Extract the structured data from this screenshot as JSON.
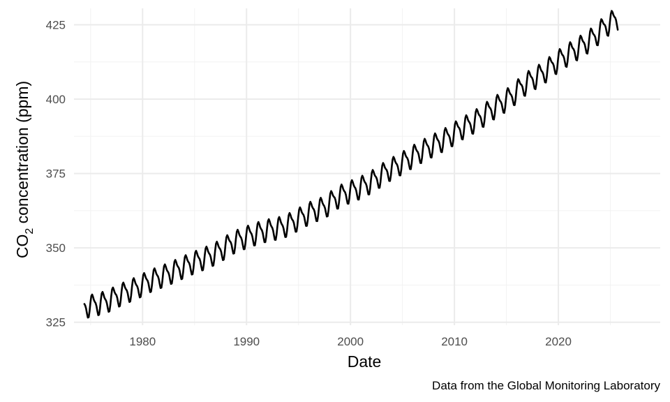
{
  "chart_data": {
    "type": "line",
    "title": "",
    "xlabel": "Date",
    "ylabel_main": "CO",
    "ylabel_sub": "2",
    "ylabel_rest": " concentration (ppm)",
    "caption": "Data from the Global Monitoring Laboratory",
    "xlim": [
      1973.4,
      2029.8
    ],
    "ylim": [
      324,
      430.5
    ],
    "x_ticks": [
      1980,
      1990,
      2000,
      2010,
      2020
    ],
    "x_tick_labels": [
      "1980",
      "1990",
      "2000",
      "2010",
      "2020"
    ],
    "x_minor_ticks": [
      1975,
      1985,
      1995,
      2005,
      2015,
      2025
    ],
    "y_ticks": [
      325,
      350,
      375,
      400,
      425
    ],
    "y_tick_labels": [
      "325",
      "350",
      "375",
      "400",
      "425"
    ],
    "y_minor_ticks": [
      337.5,
      362.5,
      387.5,
      412.5
    ],
    "grid": true,
    "legend": "none",
    "series": [
      {
        "name": "CO2 (ppm)",
        "color": "#000000",
        "x_start": 1974.4,
        "x_end": 2025.75,
        "step": 0.0833,
        "annual_means": {
          "1974": 330.3,
          "1975": 331.1,
          "1976": 332.0,
          "1977": 333.8,
          "1978": 335.4,
          "1979": 336.8,
          "1980": 338.7,
          "1981": 340.1,
          "1982": 341.4,
          "1983": 343.0,
          "1984": 344.6,
          "1985": 346.0,
          "1986": 347.4,
          "1987": 349.2,
          "1988": 351.6,
          "1989": 353.1,
          "1990": 354.4,
          "1991": 355.6,
          "1992": 356.4,
          "1993": 357.1,
          "1994": 358.8,
          "1995": 360.8,
          "1996": 362.6,
          "1997": 363.7,
          "1998": 366.6,
          "1999": 368.4,
          "2000": 369.7,
          "2001": 371.3,
          "2002": 373.4,
          "2003": 375.9,
          "2004": 377.7,
          "2005": 379.8,
          "2006": 381.9,
          "2007": 383.8,
          "2008": 385.6,
          "2009": 387.4,
          "2010": 389.9,
          "2011": 391.7,
          "2012": 393.9,
          "2013": 396.5,
          "2014": 398.7,
          "2015": 401.0,
          "2016": 404.4,
          "2017": 406.8,
          "2018": 408.7,
          "2019": 411.7,
          "2020": 414.2,
          "2021": 416.4,
          "2022": 418.6,
          "2023": 421.1,
          "2024": 424.6,
          "2025": 427.0
        },
        "seasonal_amplitude": 3.3
      }
    ]
  }
}
